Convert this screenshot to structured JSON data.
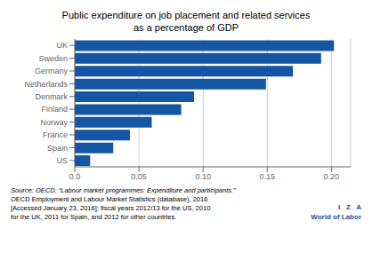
{
  "chart_data": {
    "type": "bar",
    "orientation": "horizontal",
    "title": "Public expenditure on job placement and related services\nas a percentage of GDP",
    "categories": [
      "US",
      "Spain",
      "France",
      "Norway",
      "Finland",
      "Denmark",
      "Netherlands",
      "Germany",
      "Sweden",
      "UK"
    ],
    "values": [
      0.012,
      0.03,
      0.043,
      0.06,
      0.083,
      0.093,
      0.149,
      0.17,
      0.192,
      0.202
    ],
    "color": "#1455a4",
    "xlim": [
      0,
      0.215
    ],
    "xticks": [
      {
        "value": 0.0,
        "label": "0.0"
      },
      0.05,
      {
        "value": 0.1,
        "label": "0.10"
      },
      0.15,
      {
        "value": 0.2,
        "label": "0.20"
      }
    ],
    "grid": true,
    "annotations": [
      "Source: OECD. “Labour market programmes: Expenditure and participants.”",
      "OECD Employment and Labour Market Statistics (database), 2016",
      "[Accessed January 23, 2016]; fiscal years 2012/13 for the US, 2010",
      "for the UK, 2011 for Spain, and 2012 for other countries.",
      "I   Z   A",
      "World of Labor"
    ]
  }
}
